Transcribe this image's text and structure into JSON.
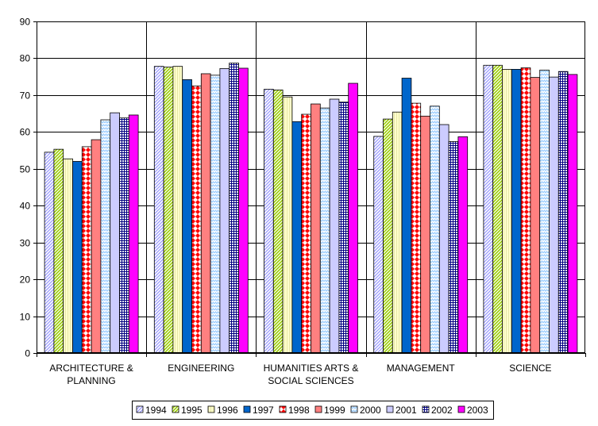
{
  "chart_data": {
    "type": "bar",
    "title": "",
    "xlabel": "",
    "ylabel": "",
    "ylim": [
      0,
      90
    ],
    "yticks": [
      0,
      10,
      20,
      30,
      40,
      50,
      60,
      70,
      80,
      90
    ],
    "grid": true,
    "legend_position": "bottom",
    "categories": [
      [
        "ARCHITECTURE &",
        "PLANNING"
      ],
      [
        "ENGINEERING"
      ],
      [
        "HUMANITIES ARTS &",
        "SOCIAL SCIENCES"
      ],
      [
        "MANAGEMENT"
      ],
      [
        "SCIENCE"
      ]
    ],
    "series": [
      {
        "name": "1994",
        "color": "#9999ff",
        "pattern": "diag-blue",
        "values": [
          54.5,
          77.8,
          71.6,
          58.8,
          78.1
        ]
      },
      {
        "name": "1995",
        "color": "#99cc00",
        "pattern": "diag-green",
        "values": [
          55.3,
          77.6,
          71.4,
          63.5,
          78.1
        ]
      },
      {
        "name": "1996",
        "color": "#ffffcc",
        "pattern": "vlines-yellow",
        "values": [
          52.7,
          77.8,
          69.5,
          65.4,
          77.0
        ]
      },
      {
        "name": "1997",
        "color": "#0066cc",
        "pattern": "solid-blue",
        "values": [
          52.0,
          74.2,
          62.8,
          74.6,
          77.0
        ]
      },
      {
        "name": "1998",
        "color": "#ff0000",
        "pattern": "checker-red",
        "values": [
          56.0,
          72.5,
          64.8,
          67.8,
          77.4
        ]
      },
      {
        "name": "1999",
        "color": "#ff8080",
        "pattern": "solid-salmon",
        "values": [
          57.9,
          75.8,
          67.6,
          64.3,
          74.8
        ]
      },
      {
        "name": "2000",
        "color": "#99ccff",
        "pattern": "zigzag-lightblue",
        "values": [
          63.3,
          75.4,
          66.5,
          67.0,
          76.8
        ]
      },
      {
        "name": "2001",
        "color": "#ccccff",
        "pattern": "solid-lavender",
        "values": [
          65.2,
          77.2,
          68.9,
          62.0,
          74.9
        ]
      },
      {
        "name": "2002",
        "color": "#000080",
        "pattern": "grid-navy",
        "values": [
          63.8,
          78.7,
          68.1,
          57.4,
          76.4
        ]
      },
      {
        "name": "2003",
        "color": "#ff00ff",
        "pattern": "solid-magenta",
        "values": [
          64.6,
          77.3,
          73.2,
          58.7,
          75.6
        ]
      }
    ]
  }
}
